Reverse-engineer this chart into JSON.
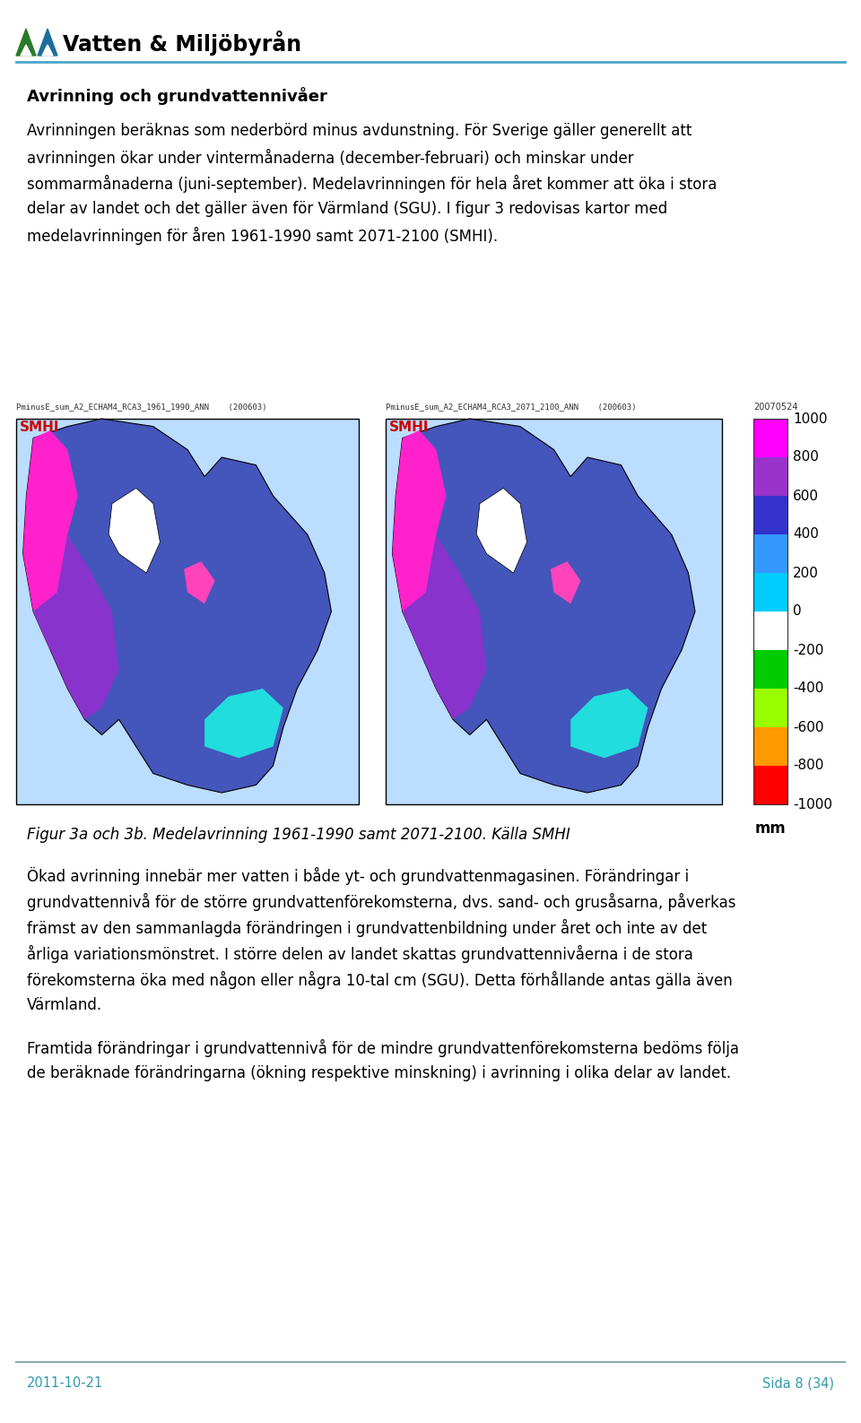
{
  "logo_text": "Vatten & Miljöbyrån",
  "header_line_color": "#4da6c8",
  "footer_line_color": "#8aabaf",
  "footer_date": "2011-10-21",
  "footer_page": "Sida 8 (34)",
  "title": "Avrinning och grundvattennivåer",
  "paragraph1": "Avrinningen beräknas som nederbörd minus avdunstning. För Sverige gäller generellt att avrinningen ökar under vintermånaderna (december-februari) och minskar under sommarmånaderna (juni-september). Medelavrinningen för hela året kommer att öka i stora delar av landet och det gäller även för Värmland (SGU). I figur 3 redovisas kartor med medelavrinningen för åren 1961-1990 samt 2071-2100 (SMHI).",
  "map1_label": "PminusE_sum_A2_ECHAM4_RCA3_1961_1990_ANN    (200603)",
  "map2_label": "PminusE_sum_A2_ECHAM4_RCA3_2071_2100_ANN    (200603)",
  "smhi_label": "SMHI",
  "colorbar_date": "20070524",
  "colorbar_values": [
    "1000",
    "800",
    "600",
    "400",
    "200",
    "0",
    "-200",
    "-400",
    "-600",
    "-800",
    "-1000"
  ],
  "colorbar_unit": "mm",
  "colorbar_colors": [
    "#FF00FF",
    "#9933CC",
    "#3333CC",
    "#3399FF",
    "#00CCFF",
    "#FFFFFF",
    "#00CC00",
    "#99FF00",
    "#FF9900",
    "#FF0000",
    "#CC0000"
  ],
  "figure_caption": "Figur 3a och 3b. Medelavrinning 1961-1990 samt 2071-2100. Källa SMHI",
  "paragraph2": "Ökad avrinning innebär mer vatten i både yt- och grundvattenmagasinen. Förändringar i grundvattennivå för de större grundvattenförekomsterna, dvs. sand- och grusåsarna, påverkas främst av den sammanlagda förändringen i grundvattenbildning under året och inte av detårliga variationsmönstret. I större delen av landet skattas grundvattennivåerna i de stora förekomsterna öka med någon eller några 10-tal cm (SGU). Detta förhållande antas gälla även Värmland.",
  "paragraph3": "Framtida förändringar i grundvattennivå för de mindre grundvattenförekomsterna bedöms följa de beräknade förändringarna (ökning respektive minskning) i avrinning i olika delar av landet.",
  "bg_color": "#FFFFFF",
  "text_color": "#000000",
  "title_color": "#000000",
  "accent_color": "#3399AA",
  "logo_green": "#2D7A2D",
  "logo_blue": "#2277AA",
  "map_bg": "#3355BB",
  "map_land_color": "#4466CC"
}
